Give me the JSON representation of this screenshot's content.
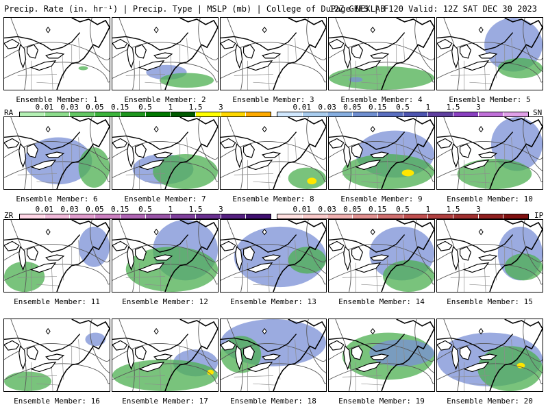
{
  "header": {
    "left": "Precip. Rate (in. hr⁻¹) | Precip. Type | MSLP (mb) | College of DuPage NEXLAB",
    "right": "12Z GEFS | F120 Valid: 12Z SAT DEC 30 2023"
  },
  "panels": [
    {
      "label": "Ensemble Member: 1",
      "precip": [
        {
          "t": "rain",
          "x": 110,
          "y": 72,
          "w": 14,
          "h": 6
        }
      ]
    },
    {
      "label": "Ensemble Member: 2",
      "precip": [
        {
          "t": "snow",
          "x": 50,
          "y": 70,
          "w": 60,
          "h": 22
        },
        {
          "t": "rain",
          "x": 70,
          "y": 82,
          "w": 80,
          "h": 22
        }
      ]
    },
    {
      "label": "Ensemble Member: 3",
      "precip": []
    },
    {
      "label": "Ensemble Member: 4",
      "precip": [
        {
          "t": "rain",
          "x": 0,
          "y": 72,
          "w": 156,
          "h": 35
        },
        {
          "t": "snow",
          "x": 30,
          "y": 88,
          "w": 20,
          "h": 8
        }
      ]
    },
    {
      "label": "Ensemble Member: 5",
      "precip": [
        {
          "t": "snow",
          "x": 70,
          "y": 0,
          "w": 86,
          "h": 80
        },
        {
          "t": "rain",
          "x": 90,
          "y": 60,
          "w": 66,
          "h": 30
        }
      ]
    },
    {
      "label": "Ensemble Member: 6",
      "precip": [
        {
          "t": "snow",
          "x": 30,
          "y": 30,
          "w": 100,
          "h": 70
        },
        {
          "t": "rain",
          "x": 110,
          "y": 45,
          "w": 46,
          "h": 60
        }
      ]
    },
    {
      "label": "Ensemble Member: 7",
      "precip": [
        {
          "t": "snow",
          "x": 30,
          "y": 55,
          "w": 90,
          "h": 45
        },
        {
          "t": "rain",
          "x": 60,
          "y": 55,
          "w": 96,
          "h": 52
        }
      ]
    },
    {
      "label": "Ensemble Member: 8",
      "precip": [
        {
          "t": "rain",
          "x": 100,
          "y": 75,
          "w": 56,
          "h": 32
        },
        {
          "t": "ice",
          "x": 128,
          "y": 90,
          "w": 14,
          "h": 10
        }
      ]
    },
    {
      "label": "Ensemble Member: 9",
      "precip": [
        {
          "t": "snow",
          "x": 40,
          "y": 20,
          "w": 116,
          "h": 70
        },
        {
          "t": "rain",
          "x": 20,
          "y": 55,
          "w": 136,
          "h": 52
        },
        {
          "t": "ice",
          "x": 108,
          "y": 78,
          "w": 18,
          "h": 10
        }
      ]
    },
    {
      "label": "Ensemble Member: 10",
      "precip": [
        {
          "t": "snow",
          "x": 80,
          "y": 0,
          "w": 76,
          "h": 80
        },
        {
          "t": "rain",
          "x": 30,
          "y": 62,
          "w": 110,
          "h": 45
        }
      ]
    },
    {
      "label": "Ensemble Member: 11",
      "precip": [
        {
          "t": "rain",
          "x": 0,
          "y": 62,
          "w": 60,
          "h": 45
        },
        {
          "t": "snow",
          "x": 110,
          "y": 10,
          "w": 46,
          "h": 60
        }
      ]
    },
    {
      "label": "Ensemble Member: 12",
      "precip": [
        {
          "t": "snow",
          "x": 60,
          "y": 0,
          "w": 96,
          "h": 90
        },
        {
          "t": "rain",
          "x": 20,
          "y": 40,
          "w": 136,
          "h": 67
        }
      ]
    },
    {
      "label": "Ensemble Member: 13",
      "precip": [
        {
          "t": "snow",
          "x": 20,
          "y": 10,
          "w": 136,
          "h": 90
        },
        {
          "t": "rain",
          "x": 100,
          "y": 40,
          "w": 56,
          "h": 40
        }
      ]
    },
    {
      "label": "Ensemble Member: 14",
      "precip": [
        {
          "t": "snow",
          "x": 60,
          "y": 10,
          "w": 96,
          "h": 80
        },
        {
          "t": "rain",
          "x": 80,
          "y": 60,
          "w": 76,
          "h": 47
        }
      ]
    },
    {
      "label": "Ensemble Member: 15",
      "precip": [
        {
          "t": "snow",
          "x": 90,
          "y": 10,
          "w": 66,
          "h": 80
        },
        {
          "t": "rain",
          "x": 100,
          "y": 50,
          "w": 56,
          "h": 40
        }
      ]
    },
    {
      "label": "Ensemble Member: 16",
      "precip": [
        {
          "t": "rain",
          "x": 0,
          "y": 78,
          "w": 70,
          "h": 29
        },
        {
          "t": "snow",
          "x": 120,
          "y": 20,
          "w": 30,
          "h": 20
        }
      ]
    },
    {
      "label": "Ensemble Member: 17",
      "precip": [
        {
          "t": "snow",
          "x": 90,
          "y": 45,
          "w": 66,
          "h": 40
        },
        {
          "t": "rain",
          "x": 0,
          "y": 60,
          "w": 156,
          "h": 47
        },
        {
          "t": "ice",
          "x": 140,
          "y": 75,
          "w": 10,
          "h": 8
        }
      ]
    },
    {
      "label": "Ensemble Member: 18",
      "precip": [
        {
          "t": "snow",
          "x": 0,
          "y": 0,
          "w": 156,
          "h": 70
        },
        {
          "t": "rain",
          "x": 0,
          "y": 25,
          "w": 60,
          "h": 55
        }
      ]
    },
    {
      "label": "Ensemble Member: 19",
      "precip": [
        {
          "t": "rain",
          "x": 20,
          "y": 20,
          "w": 136,
          "h": 70
        },
        {
          "t": "snow",
          "x": 60,
          "y": 30,
          "w": 96,
          "h": 40
        }
      ]
    },
    {
      "label": "Ensemble Member: 20",
      "precip": [
        {
          "t": "snow",
          "x": 0,
          "y": 20,
          "w": 156,
          "h": 80
        },
        {
          "t": "rain",
          "x": 60,
          "y": 40,
          "w": 96,
          "h": 67
        },
        {
          "t": "ice",
          "x": 118,
          "y": 65,
          "w": 12,
          "h": 8
        }
      ]
    }
  ],
  "legends": [
    {
      "code": "RA",
      "ticks": [
        "0.01",
        "0.03",
        "0.05",
        "0.15",
        "0.5",
        "1",
        "1.5",
        "3"
      ],
      "colors": [
        "#b4f0b4",
        "#8cdc8c",
        "#64c864",
        "#3cb43c",
        "#1e961e",
        "#007800",
        "#005a00",
        "#ffff00",
        "#ffd700",
        "#ffaa00"
      ]
    },
    {
      "code": "SN",
      "ticks": [
        "0.01",
        "0.03",
        "0.05",
        "0.15",
        "0.5",
        "1",
        "1.5",
        "3"
      ],
      "colors": [
        "#d0e8ff",
        "#a8ccee",
        "#86aee0",
        "#6f8fd0",
        "#5a6fc0",
        "#4d55b0",
        "#6040a0",
        "#8a40c0",
        "#c070d8",
        "#e0a0e8"
      ]
    },
    {
      "code": "ZR",
      "ticks": [
        "0.01",
        "0.03",
        "0.05",
        "0.15",
        "0.5",
        "1",
        "1.5",
        "3"
      ],
      "colors": [
        "#ffd6e6",
        "#f0b8d8",
        "#e09ccc",
        "#cc80c0",
        "#b066b4",
        "#9a55a8",
        "#80409c",
        "#6a3090",
        "#552080",
        "#401070"
      ]
    },
    {
      "code": "IP",
      "ticks": [
        "0.01",
        "0.03",
        "0.05",
        "0.15",
        "0.5",
        "1",
        "1.5",
        "3"
      ],
      "colors": [
        "#ffe0e0",
        "#f8c8c8",
        "#f0b0b0",
        "#e09090",
        "#d07070",
        "#c05050",
        "#b04040",
        "#a03030",
        "#902020",
        "#801010"
      ]
    }
  ],
  "colors": {
    "rain": "#4caf50",
    "snow": "#7a8fd6",
    "ice": "#ffe600",
    "border": "#000000",
    "states": "#8c8c8c",
    "isobar": "#555555"
  }
}
